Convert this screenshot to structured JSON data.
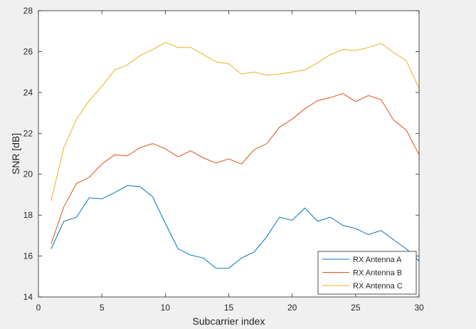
{
  "chart_data": {
    "type": "line",
    "title": "",
    "xlabel": "Subcarrier index",
    "ylabel": "SNR [dB]",
    "xlim": [
      0,
      30
    ],
    "ylim": [
      14,
      28
    ],
    "x_ticks": [
      0,
      5,
      10,
      15,
      20,
      25,
      30
    ],
    "y_ticks": [
      14,
      16,
      18,
      20,
      22,
      24,
      26,
      28
    ],
    "x_tick_labels": [
      "0",
      "5",
      "10",
      "15",
      "20",
      "25",
      "30"
    ],
    "y_tick_labels": [
      "14",
      "16",
      "18",
      "20",
      "22",
      "24",
      "26",
      "28"
    ],
    "grid": false,
    "legend_position": "bottom-right",
    "x": [
      1,
      2,
      3,
      4,
      5,
      6,
      7,
      8,
      9,
      10,
      11,
      12,
      13,
      14,
      15,
      16,
      17,
      18,
      19,
      20,
      21,
      22,
      23,
      24,
      25,
      26,
      27,
      28,
      29,
      30
    ],
    "series": [
      {
        "name": "RX Antenna A",
        "color": "#0072BD",
        "values": [
          16.35,
          17.7,
          17.9,
          18.85,
          18.8,
          19.1,
          19.45,
          19.4,
          18.9,
          17.6,
          16.35,
          16.05,
          15.9,
          15.4,
          15.4,
          15.9,
          16.2,
          16.95,
          17.9,
          17.75,
          18.35,
          17.7,
          17.9,
          17.5,
          17.35,
          17.05,
          17.25,
          16.8,
          16.35,
          15.75
        ]
      },
      {
        "name": "RX Antenna B",
        "color": "#D95319",
        "values": [
          16.6,
          18.4,
          19.55,
          19.85,
          20.5,
          20.95,
          20.9,
          21.3,
          21.5,
          21.25,
          20.85,
          21.15,
          20.8,
          20.55,
          20.75,
          20.5,
          21.2,
          21.5,
          22.3,
          22.7,
          23.2,
          23.6,
          23.75,
          23.95,
          23.55,
          23.85,
          23.65,
          22.65,
          22.15,
          20.95
        ]
      },
      {
        "name": "RX Antenna C",
        "color": "#EDB120",
        "values": [
          18.7,
          21.3,
          22.7,
          23.6,
          24.3,
          25.1,
          25.35,
          25.8,
          26.1,
          26.45,
          26.2,
          26.2,
          25.85,
          25.5,
          25.4,
          24.9,
          25.0,
          24.85,
          24.9,
          25.0,
          25.1,
          25.45,
          25.85,
          26.1,
          26.05,
          26.2,
          26.4,
          25.95,
          25.55,
          24.2
        ]
      }
    ]
  }
}
